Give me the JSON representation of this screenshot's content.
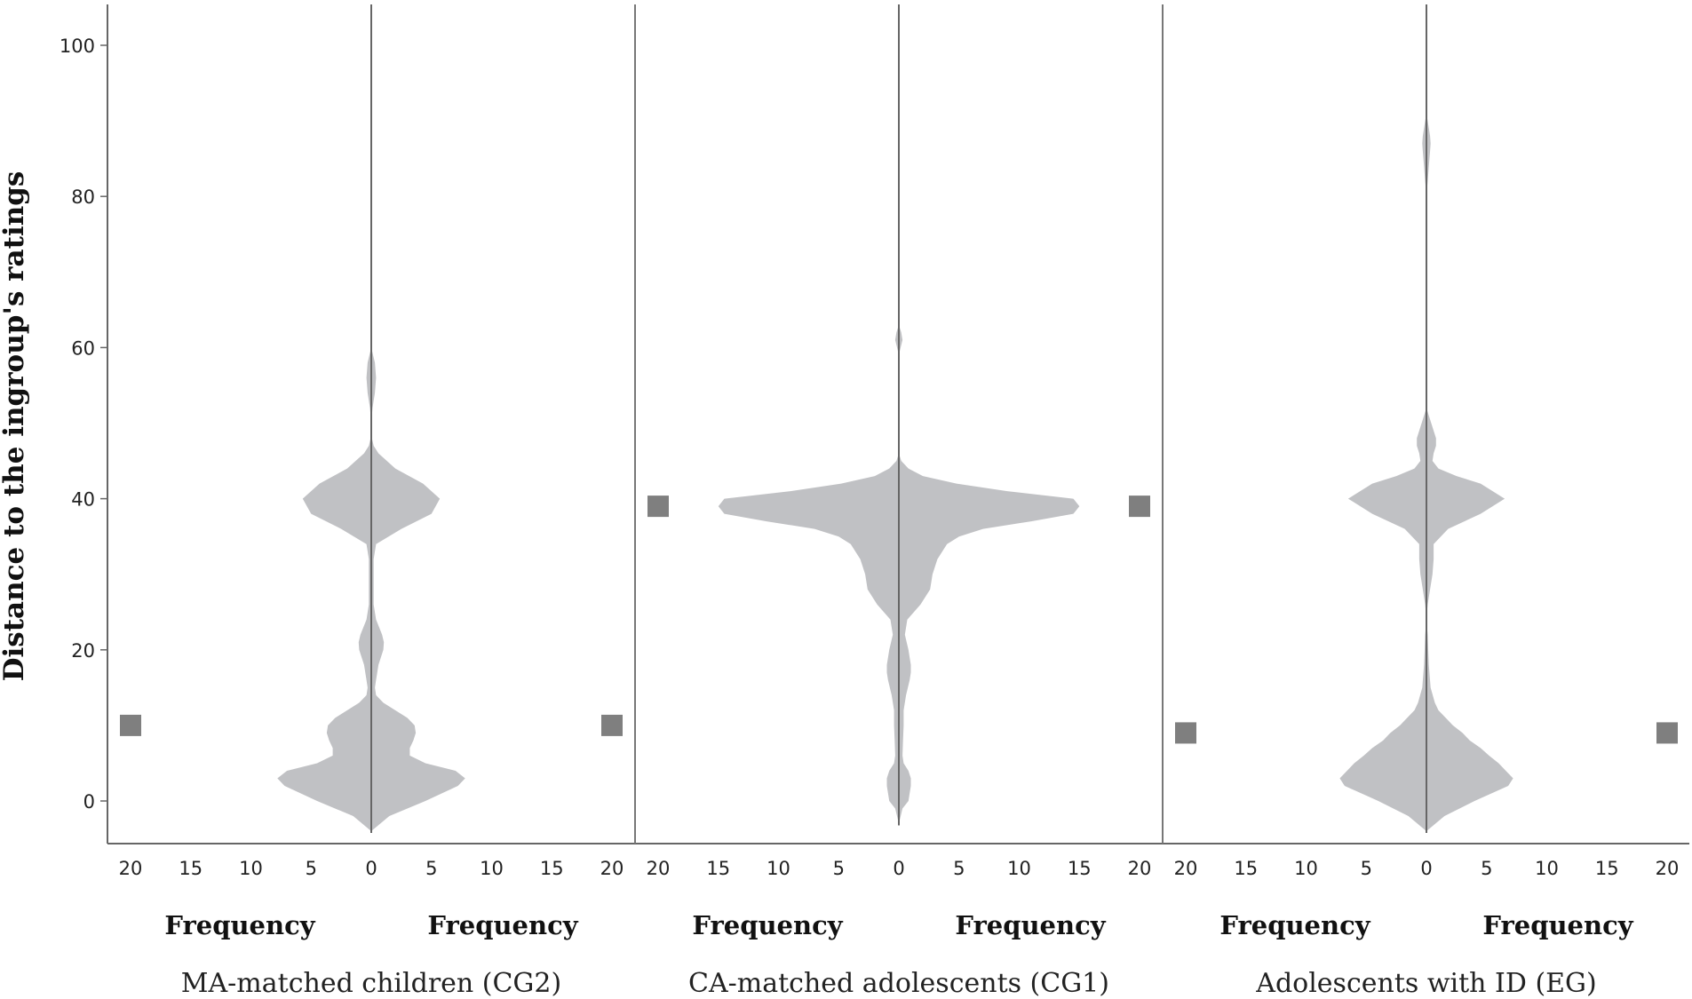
{
  "chart_data": {
    "type": "violin",
    "ylabel": "Distance to the ingroup's ratings",
    "xlabel": "Frequency",
    "ylim": [
      -6,
      105
    ],
    "y_ticks": [
      0,
      20,
      40,
      60,
      80,
      100
    ],
    "x_ticks": [
      "20",
      "15",
      "10",
      "5",
      "0",
      "5",
      "10",
      "15",
      "20"
    ],
    "freq_range": [
      0,
      20
    ],
    "colors": {
      "violin": "#c0c1c4",
      "marker": "#7f7f7f",
      "axis": "#666666",
      "divider": "#777777"
    },
    "series": [
      {
        "name": "MA-matched children (CG2)",
        "marker_value": 10,
        "density": [
          [
            -4,
            0
          ],
          [
            -2,
            1.5
          ],
          [
            0,
            4.5
          ],
          [
            2,
            7.2
          ],
          [
            3,
            7.8
          ],
          [
            4,
            7
          ],
          [
            5,
            4.5
          ],
          [
            6,
            3.2
          ],
          [
            7,
            3.2
          ],
          [
            8,
            3.5
          ],
          [
            9,
            3.7
          ],
          [
            10,
            3.6
          ],
          [
            11,
            3
          ],
          [
            12,
            2
          ],
          [
            13,
            1
          ],
          [
            14,
            0.4
          ],
          [
            15,
            0.3
          ],
          [
            16,
            0.4
          ],
          [
            18,
            0.6
          ],
          [
            20,
            1
          ],
          [
            21,
            1.05
          ],
          [
            22,
            0.9
          ],
          [
            24,
            0.4
          ],
          [
            26,
            0.2
          ],
          [
            30,
            0.2
          ],
          [
            32,
            0.2
          ],
          [
            34,
            0.4
          ],
          [
            36,
            2.5
          ],
          [
            38,
            5
          ],
          [
            40,
            5.7
          ],
          [
            42,
            4.3
          ],
          [
            44,
            2
          ],
          [
            46,
            0.6
          ],
          [
            47,
            0.2
          ],
          [
            48,
            0.05
          ],
          [
            50,
            0
          ],
          [
            52,
            0.1
          ],
          [
            54,
            0.3
          ],
          [
            56,
            0.4
          ],
          [
            58,
            0.3
          ],
          [
            60,
            0
          ]
        ]
      },
      {
        "name": "CA-matched adolescents (CG1)",
        "marker_value": 39,
        "density": [
          [
            -3,
            0
          ],
          [
            -1,
            0.3
          ],
          [
            0,
            0.8
          ],
          [
            2,
            1
          ],
          [
            3,
            1
          ],
          [
            4,
            0.8
          ],
          [
            5,
            0.4
          ],
          [
            6,
            0.3
          ],
          [
            8,
            0.35
          ],
          [
            10,
            0.4
          ],
          [
            12,
            0.4
          ],
          [
            14,
            0.6
          ],
          [
            16,
            0.9
          ],
          [
            17,
            1
          ],
          [
            18,
            1
          ],
          [
            20,
            0.8
          ],
          [
            22,
            0.5
          ],
          [
            24,
            0.7
          ],
          [
            26,
            1.8
          ],
          [
            28,
            2.6
          ],
          [
            30,
            2.8
          ],
          [
            32,
            3.2
          ],
          [
            34,
            4
          ],
          [
            35,
            5
          ],
          [
            36,
            7
          ],
          [
            37,
            11
          ],
          [
            38,
            14.5
          ],
          [
            39,
            15
          ],
          [
            40,
            14.5
          ],
          [
            41,
            9
          ],
          [
            42,
            4.8
          ],
          [
            43,
            2
          ],
          [
            44,
            0.8
          ],
          [
            45,
            0.2
          ],
          [
            46,
            0
          ],
          [
            59,
            0
          ],
          [
            60,
            0.15
          ],
          [
            61,
            0.3
          ],
          [
            62,
            0.2
          ],
          [
            63,
            0
          ]
        ]
      },
      {
        "name": "Adolescents with ID (EG)",
        "marker_value": 9,
        "density": [
          [
            -4,
            0
          ],
          [
            -2,
            1.5
          ],
          [
            0,
            4
          ],
          [
            2,
            6.8
          ],
          [
            3,
            7.2
          ],
          [
            4,
            6.6
          ],
          [
            5,
            6
          ],
          [
            6,
            5.2
          ],
          [
            7,
            4.5
          ],
          [
            8,
            3.6
          ],
          [
            9,
            3
          ],
          [
            10,
            2.2
          ],
          [
            11,
            1.6
          ],
          [
            12,
            1
          ],
          [
            13,
            0.7
          ],
          [
            15,
            0.35
          ],
          [
            18,
            0.2
          ],
          [
            20,
            0.15
          ],
          [
            22,
            0.1
          ],
          [
            24,
            0
          ],
          [
            26,
            0.1
          ],
          [
            28,
            0.3
          ],
          [
            30,
            0.5
          ],
          [
            32,
            0.6
          ],
          [
            34,
            0.6
          ],
          [
            36,
            1.8
          ],
          [
            38,
            4.5
          ],
          [
            40,
            6.5
          ],
          [
            42,
            4.5
          ],
          [
            43,
            2.5
          ],
          [
            44,
            1
          ],
          [
            45,
            0.5
          ],
          [
            46,
            0.6
          ],
          [
            47,
            0.8
          ],
          [
            48,
            0.8
          ],
          [
            49,
            0.6
          ],
          [
            51,
            0.2
          ],
          [
            52,
            0
          ],
          [
            80,
            0
          ],
          [
            82,
            0.1
          ],
          [
            84,
            0.2
          ],
          [
            86,
            0.3
          ],
          [
            87,
            0.35
          ],
          [
            88,
            0.3
          ],
          [
            90,
            0.1
          ],
          [
            91,
            0
          ]
        ]
      }
    ]
  }
}
